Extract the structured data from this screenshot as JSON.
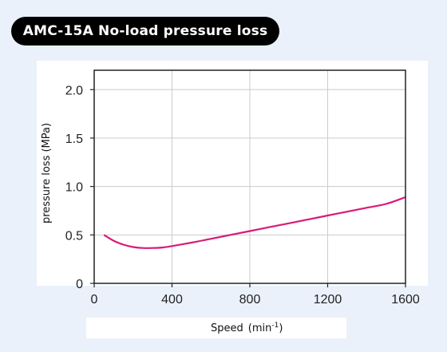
{
  "chart_data": {
    "type": "line",
    "title": "AMC-15A No-load pressure loss",
    "xlabel": "Speed",
    "xlabel_unit": "(min",
    "xlabel_unit_sup": "-1",
    "xlabel_unit_close": ")",
    "ylabel": "pressure loss (MPa)",
    "xlim": [
      0,
      1600
    ],
    "ylim": [
      0,
      2.2
    ],
    "xticks": [
      0,
      400,
      800,
      1200,
      1600
    ],
    "xtick_labels": [
      "0",
      "400",
      "800",
      "1200",
      "1600"
    ],
    "yticks": [
      0,
      0.5,
      1.0,
      1.5,
      2.0
    ],
    "ytick_labels": [
      "0",
      "0.5",
      "1.0",
      "1.5",
      "2.0"
    ],
    "grid": true,
    "colors": {
      "line": "#d81b78",
      "grid": "#cccccc",
      "axis": "#222222",
      "plot_bg": "#ffffff"
    },
    "series": [
      {
        "x": [
          50,
          100,
          150,
          200,
          250,
          300,
          350,
          400,
          500,
          600,
          700,
          800,
          900,
          1000,
          1100,
          1200,
          1300,
          1400,
          1500,
          1600
        ],
        "y": [
          0.5,
          0.44,
          0.4,
          0.375,
          0.365,
          0.365,
          0.37,
          0.385,
          0.42,
          0.46,
          0.5,
          0.54,
          0.58,
          0.62,
          0.66,
          0.7,
          0.74,
          0.78,
          0.82,
          0.89
        ]
      }
    ]
  }
}
